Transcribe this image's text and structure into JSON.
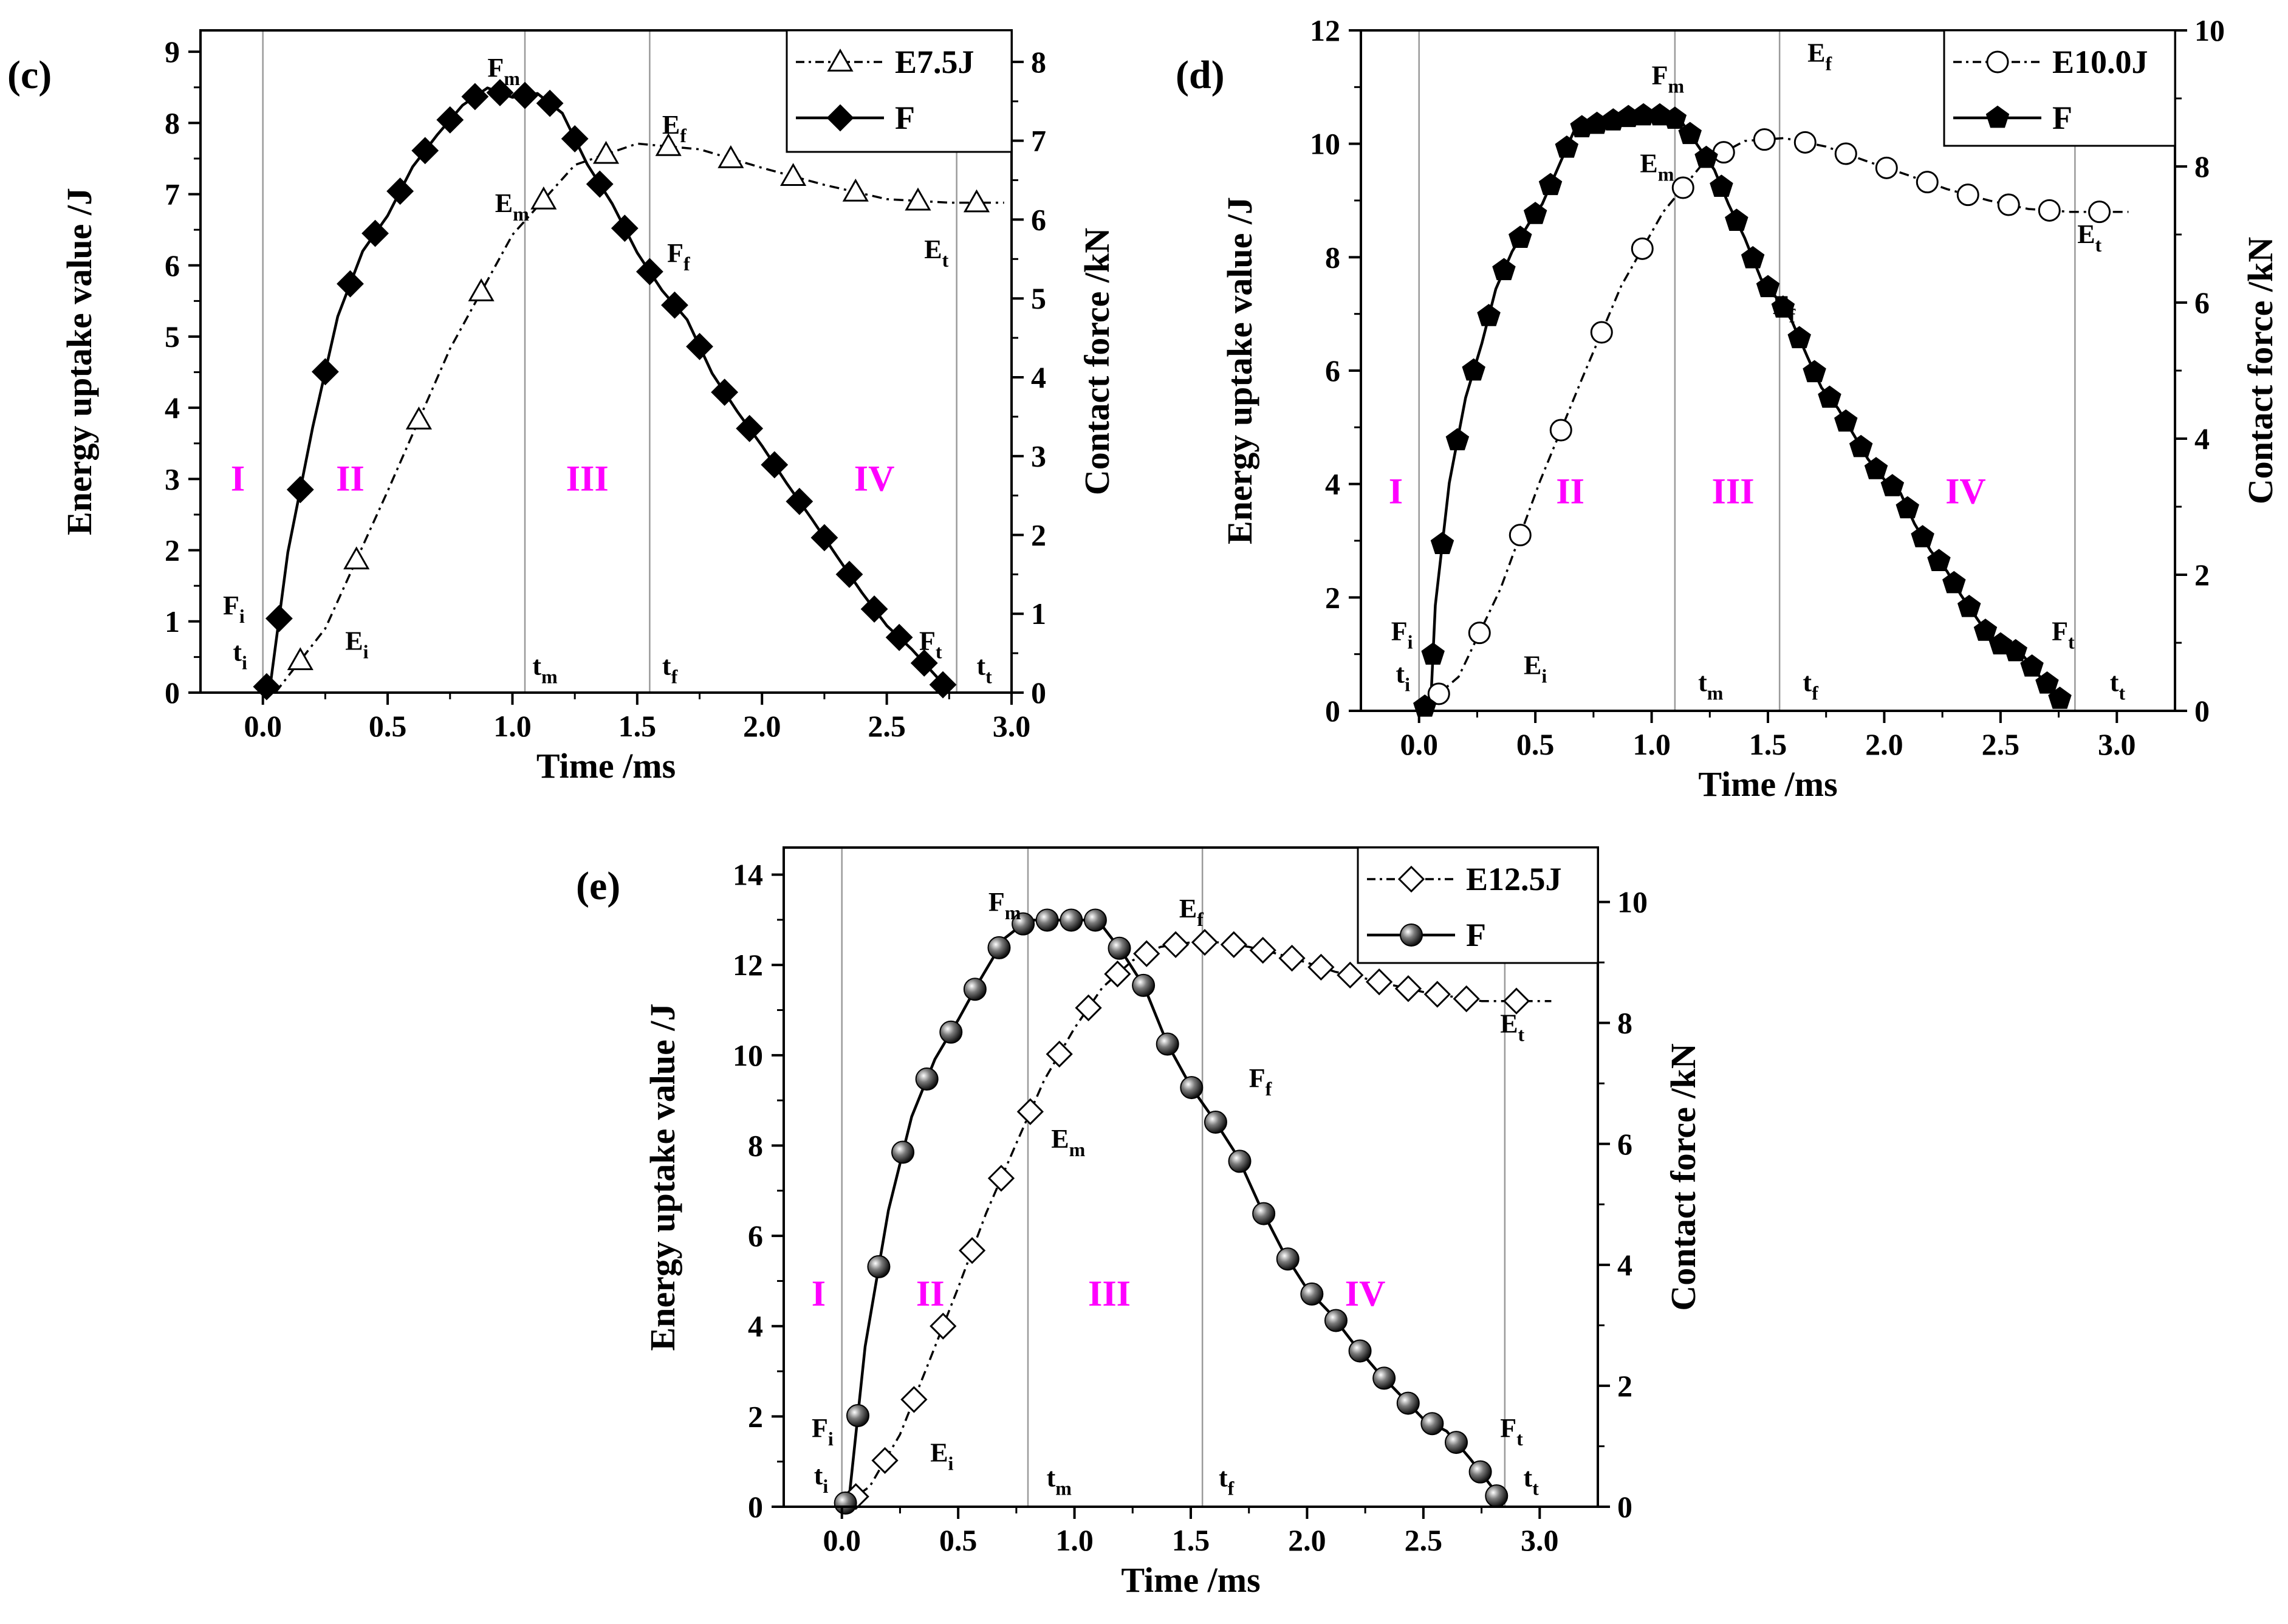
{
  "figure": {
    "colors": {
      "region_label": "#ff00ff",
      "grid_line": "#9a9a9a",
      "axis": "#000000"
    }
  },
  "chart_data": [
    {
      "type": "line",
      "panel_label": "(c)",
      "xlabel": "Time /ms",
      "ylabel_left": "Energy uptake value /J",
      "ylabel_right": "Contact force /kN",
      "xlim": [
        -0.25,
        3.0
      ],
      "ylim_left": [
        0,
        9.3
      ],
      "ylim_right": [
        0,
        8.4
      ],
      "x_ticks": [
        0.0,
        0.5,
        1.0,
        1.5,
        2.0,
        2.5,
        3.0
      ],
      "x_tick_labels": [
        "0.0",
        "0.5",
        "1.0",
        "1.5",
        "2.0",
        "2.5",
        "3.0"
      ],
      "y_left_ticks": [
        0,
        1,
        2,
        3,
        4,
        5,
        6,
        7,
        8,
        9
      ],
      "y_left_tick_labels": [
        "0",
        "1",
        "2",
        "3",
        "4",
        "5",
        "6",
        "7",
        "8",
        "9"
      ],
      "y_right_ticks": [
        0,
        1,
        2,
        3,
        4,
        5,
        6,
        7,
        8
      ],
      "y_right_tick_labels": [
        "0",
        "1",
        "2",
        "3",
        "4",
        "5",
        "6",
        "7",
        "8"
      ],
      "legend": [
        {
          "name": "E7.5J",
          "marker": "triangle",
          "linestyle": "dashdot"
        },
        {
          "name": "F",
          "marker": "diamond",
          "linestyle": "solid"
        }
      ],
      "series": [
        {
          "name": "E7.5J",
          "axis": "left",
          "marker": "triangle",
          "linestyle": "dashdot",
          "x": [
            0.05,
            0.25,
            0.5,
            0.75,
            1.0,
            1.25,
            1.5,
            1.75,
            2.0,
            2.25,
            2.5,
            2.75,
            2.97
          ],
          "y": [
            0.0,
            0.9,
            2.83,
            4.83,
            6.43,
            7.41,
            7.71,
            7.63,
            7.37,
            7.13,
            6.93,
            6.88,
            6.88
          ],
          "marker_count": 12
        },
        {
          "name": "F",
          "axis": "right",
          "marker": "diamond",
          "linestyle": "solid",
          "x": [
            0.0,
            0.03,
            0.1,
            0.2,
            0.3,
            0.4,
            0.5,
            0.6,
            0.7,
            0.8,
            0.9,
            1.0,
            1.1,
            1.2,
            1.3,
            1.4,
            1.5,
            1.6,
            1.7,
            1.8,
            1.9,
            2.0,
            2.1,
            2.2,
            2.3,
            2.4,
            2.5,
            2.6,
            2.7,
            2.75
          ],
          "y": [
            0.05,
            0.1,
            1.78,
            3.37,
            4.77,
            5.6,
            6.05,
            6.67,
            7.08,
            7.45,
            7.67,
            7.55,
            7.6,
            7.35,
            6.7,
            6.2,
            5.58,
            5.1,
            4.73,
            4.05,
            3.57,
            3.13,
            2.65,
            2.2,
            1.73,
            1.27,
            0.85,
            0.55,
            0.2,
            0.0
          ],
          "marker_count": 29
        }
      ],
      "vlines": [
        0.0,
        1.05,
        1.55,
        2.78
      ],
      "regions": [
        {
          "label": "I",
          "x": -0.1
        },
        {
          "label": "II",
          "x": 0.35
        },
        {
          "label": "III",
          "x": 1.3
        },
        {
          "label": "IV",
          "x": 2.45
        }
      ],
      "annotations": [
        {
          "main": "F",
          "sub": "m",
          "x": 0.9,
          "y": 8.65
        },
        {
          "main": "E",
          "sub": "f",
          "x": 1.6,
          "y": 7.85
        },
        {
          "main": "E",
          "sub": "m",
          "x": 0.93,
          "y": 6.75
        },
        {
          "main": "F",
          "sub": "f",
          "x": 1.62,
          "y": 6.05
        },
        {
          "main": "E",
          "sub": "t",
          "x": 2.65,
          "y": 6.1
        },
        {
          "main": "F",
          "sub": "i",
          "x": -0.16,
          "y": 1.1
        },
        {
          "main": "t",
          "sub": "i",
          "x": -0.12,
          "y": 0.45
        },
        {
          "main": "E",
          "sub": "i",
          "x": 0.33,
          "y": 0.6
        },
        {
          "main": "t",
          "sub": "m",
          "x": 1.08,
          "y": 0.25
        },
        {
          "main": "t",
          "sub": "f",
          "x": 1.6,
          "y": 0.25
        },
        {
          "main": "F",
          "sub": "t",
          "x": 2.63,
          "y": 0.6
        },
        {
          "main": "t",
          "sub": "t",
          "x": 2.86,
          "y": 0.25
        }
      ]
    },
    {
      "type": "line",
      "panel_label": "(d)",
      "xlabel": "Time /ms",
      "ylabel_left": "Energy uptake value /J",
      "ylabel_right": "Contact force /kN",
      "xlim": [
        -0.25,
        3.25
      ],
      "ylim_left": [
        0,
        12
      ],
      "ylim_right": [
        0,
        10
      ],
      "x_ticks": [
        0.0,
        0.5,
        1.0,
        1.5,
        2.0,
        2.5,
        3.0
      ],
      "x_tick_labels": [
        "0.0",
        "0.5",
        "1.0",
        "1.5",
        "2.0",
        "2.5",
        "3.0"
      ],
      "y_left_ticks": [
        0,
        2,
        4,
        6,
        8,
        10,
        12
      ],
      "y_left_tick_labels": [
        "0",
        "2",
        "4",
        "6",
        "8",
        "10",
        "12"
      ],
      "y_right_ticks": [
        0,
        2,
        4,
        6,
        8,
        10
      ],
      "y_right_tick_labels": [
        "0",
        "2",
        "4",
        "6",
        "8",
        "10"
      ],
      "legend": [
        {
          "name": "E10.0J",
          "marker": "circle",
          "linestyle": "dashdot"
        },
        {
          "name": "F",
          "marker": "pentagon",
          "linestyle": "solid"
        }
      ],
      "series": [
        {
          "name": "E10.0J",
          "axis": "left",
          "marker": "circle",
          "linestyle": "dashdot",
          "x": [
            0.0,
            0.17,
            0.35,
            0.52,
            0.7,
            0.87,
            1.05,
            1.22,
            1.4,
            1.57,
            1.75,
            1.92,
            2.1,
            2.27,
            2.45,
            2.62,
            2.8,
            3.05
          ],
          "y": [
            0.0,
            0.6,
            2.15,
            4.05,
            5.85,
            7.5,
            8.8,
            9.65,
            10.05,
            10.1,
            9.95,
            9.7,
            9.45,
            9.2,
            9.0,
            8.85,
            8.8,
            8.8
          ],
          "marker_count": 17
        },
        {
          "name": "F",
          "axis": "right",
          "marker": "pentagon",
          "linestyle": "solid",
          "x": [
            0.0,
            0.05,
            0.07,
            0.13,
            0.2,
            0.27,
            0.33,
            0.4,
            0.47,
            0.53,
            0.6,
            0.67,
            0.73,
            0.8,
            0.87,
            0.93,
            1.0,
            1.07,
            1.13,
            1.2,
            1.27,
            1.33,
            1.4,
            1.47,
            1.53,
            1.6,
            1.67,
            1.73,
            1.8,
            1.87,
            1.93,
            2.0,
            2.07,
            2.13,
            2.2,
            2.27,
            2.33,
            2.4,
            2.47,
            2.53,
            2.6,
            2.67,
            2.73,
            2.78
          ],
          "y": [
            0.02,
            0.1,
            1.55,
            3.35,
            4.6,
            5.4,
            6.2,
            6.75,
            7.15,
            7.45,
            8.0,
            8.55,
            8.6,
            8.65,
            8.7,
            8.75,
            8.75,
            8.75,
            8.65,
            8.3,
            7.95,
            7.45,
            6.95,
            6.35,
            6.1,
            5.75,
            5.2,
            4.75,
            4.45,
            4.05,
            3.7,
            3.4,
            3.2,
            2.75,
            2.35,
            2.05,
            1.7,
            1.35,
            1.0,
            0.95,
            0.8,
            0.5,
            0.3,
            0.05
          ],
          "marker_count": 43
        }
      ],
      "vlines": [
        0.0,
        1.1,
        1.55,
        2.82
      ],
      "regions": [
        {
          "label": "I",
          "x": -0.1
        },
        {
          "label": "II",
          "x": 0.65
        },
        {
          "label": "III",
          "x": 1.35
        },
        {
          "label": "IV",
          "x": 2.35
        }
      ],
      "annotations": [
        {
          "main": "F",
          "sub": "m",
          "x": 1.0,
          "y": 11.05
        },
        {
          "main": "E",
          "sub": "f",
          "x": 1.67,
          "y": 11.45
        },
        {
          "main": "E",
          "sub": "m",
          "x": 0.95,
          "y": 9.5
        },
        {
          "main": "F",
          "sub": "f",
          "x": 1.52,
          "y": 7.0
        },
        {
          "main": "E",
          "sub": "t",
          "x": 2.83,
          "y": 8.25
        },
        {
          "main": "F",
          "sub": "i",
          "x": -0.12,
          "y": 1.25
        },
        {
          "main": "t",
          "sub": "i",
          "x": -0.1,
          "y": 0.5
        },
        {
          "main": "E",
          "sub": "i",
          "x": 0.45,
          "y": 0.65
        },
        {
          "main": "t",
          "sub": "m",
          "x": 1.2,
          "y": 0.35
        },
        {
          "main": "t",
          "sub": "f",
          "x": 1.65,
          "y": 0.35
        },
        {
          "main": "F",
          "sub": "t",
          "x": 2.72,
          "y": 1.25
        },
        {
          "main": "t",
          "sub": "t",
          "x": 2.97,
          "y": 0.35
        }
      ]
    },
    {
      "type": "line",
      "panel_label": "(e)",
      "xlabel": "Time /ms",
      "ylabel_left": "Energy uptake value /J",
      "ylabel_right": "Contact force /kN",
      "xlim": [
        -0.25,
        3.25
      ],
      "ylim_left": [
        0,
        14.6
      ],
      "ylim_right": [
        0,
        10.9
      ],
      "x_ticks": [
        0.0,
        0.5,
        1.0,
        1.5,
        2.0,
        2.5,
        3.0
      ],
      "x_tick_labels": [
        "0.0",
        "0.5",
        "1.0",
        "1.5",
        "2.0",
        "2.5",
        "3.0"
      ],
      "y_left_ticks": [
        0,
        2,
        4,
        6,
        8,
        10,
        12,
        14
      ],
      "y_left_tick_labels": [
        "0",
        "2",
        "4",
        "6",
        "8",
        "10",
        "12",
        "14"
      ],
      "y_right_ticks": [
        0,
        2,
        4,
        6,
        8,
        10
      ],
      "y_right_tick_labels": [
        "0",
        "2",
        "4",
        "6",
        "8",
        "10"
      ],
      "legend": [
        {
          "name": "E12.5J",
          "marker": "diamond-open",
          "linestyle": "dashdot"
        },
        {
          "name": "F",
          "marker": "sphere",
          "linestyle": "solid"
        }
      ],
      "series": [
        {
          "name": "E12.5J",
          "axis": "left",
          "marker": "diamond-open",
          "linestyle": "dashdot",
          "x": [
            0.0,
            0.12,
            0.25,
            0.37,
            0.5,
            0.62,
            0.75,
            0.87,
            1.0,
            1.12,
            1.25,
            1.37,
            1.5,
            1.62,
            1.75,
            1.87,
            2.0,
            2.12,
            2.25,
            2.37,
            2.5,
            2.62,
            2.75,
            3.05
          ],
          "y": [
            0.0,
            0.45,
            1.6,
            3.15,
            4.85,
            6.5,
            8.05,
            9.45,
            10.6,
            11.5,
            12.1,
            12.4,
            12.5,
            12.5,
            12.4,
            12.25,
            12.05,
            11.85,
            11.7,
            11.55,
            11.4,
            11.3,
            11.2,
            11.2
          ],
          "marker_count": 23
        },
        {
          "name": "F",
          "axis": "right",
          "marker": "sphere",
          "linestyle": "solid",
          "x": [
            0.0,
            0.03,
            0.1,
            0.2,
            0.3,
            0.4,
            0.5,
            0.6,
            0.7,
            0.8,
            0.9,
            1.0,
            1.1,
            1.2,
            1.3,
            1.4,
            1.5,
            1.6,
            1.7,
            1.8,
            1.9,
            2.0,
            2.1,
            2.2,
            2.3,
            2.4,
            2.5,
            2.6,
            2.7,
            2.8,
            2.83
          ],
          "y": [
            0.02,
            0.1,
            2.65,
            4.9,
            6.45,
            7.4,
            8.05,
            8.75,
            9.4,
            9.7,
            9.7,
            9.7,
            9.7,
            9.2,
            8.6,
            7.65,
            6.95,
            6.4,
            5.8,
            4.95,
            4.2,
            3.6,
            3.2,
            2.7,
            2.25,
            1.85,
            1.45,
            1.25,
            0.8,
            0.3,
            0.05
          ],
          "marker_count": 29
        }
      ],
      "vlines": [
        0.0,
        0.8,
        1.55,
        2.85
      ],
      "regions": [
        {
          "label": "I",
          "x": -0.1
        },
        {
          "label": "II",
          "x": 0.38
        },
        {
          "label": "III",
          "x": 1.15
        },
        {
          "label": "IV",
          "x": 2.25
        }
      ],
      "annotations": [
        {
          "main": "F",
          "sub": "m",
          "x": 0.63,
          "y": 13.2
        },
        {
          "main": "E",
          "sub": "f",
          "x": 1.45,
          "y": 13.05
        },
        {
          "main": "E",
          "sub": "m",
          "x": 0.9,
          "y": 7.95
        },
        {
          "main": "F",
          "sub": "f",
          "x": 1.75,
          "y": 9.3
        },
        {
          "main": "E",
          "sub": "t",
          "x": 2.83,
          "y": 10.5
        },
        {
          "main": "F",
          "sub": "i",
          "x": -0.13,
          "y": 1.55
        },
        {
          "main": "t",
          "sub": "i",
          "x": -0.12,
          "y": 0.5
        },
        {
          "main": "E",
          "sub": "i",
          "x": 0.38,
          "y": 1.0
        },
        {
          "main": "t",
          "sub": "m",
          "x": 0.88,
          "y": 0.45
        },
        {
          "main": "t",
          "sub": "f",
          "x": 1.62,
          "y": 0.45
        },
        {
          "main": "F",
          "sub": "t",
          "x": 2.83,
          "y": 1.55
        },
        {
          "main": "t",
          "sub": "t",
          "x": 2.93,
          "y": 0.45
        }
      ]
    }
  ]
}
